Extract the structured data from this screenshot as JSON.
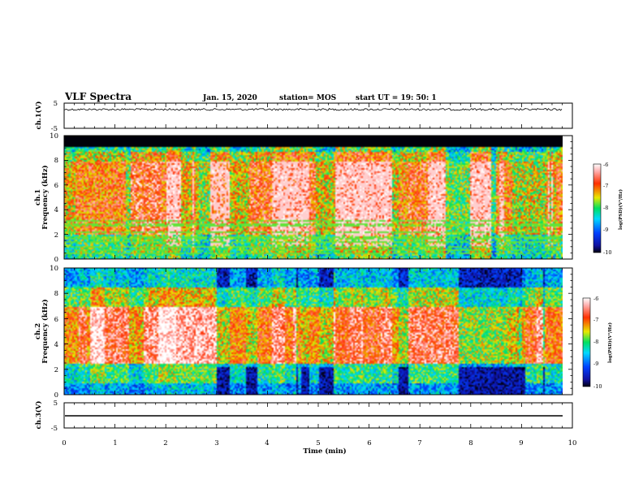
{
  "header": {
    "title": "VLF Spectra",
    "date": "Jan. 15, 2020",
    "station": "station= MOS",
    "start": "start  UT =   19: 50: 1"
  },
  "colorbar": {
    "label": "log(PSD)(V²/Hz)",
    "ticks": [
      "-6",
      "-7",
      "-8",
      "-9",
      "-10"
    ]
  },
  "colors": {
    "black": "#000000",
    "deep_blue": "#1a1aa0",
    "blue": "#0040ff",
    "cyan": "#00d8ff",
    "green": "#00e060",
    "yellow": "#f0e000",
    "red": "#ff2000",
    "white": "#ffffff"
  },
  "chart_data": [
    {
      "type": "line",
      "panel": "ch1-waveform",
      "ylabel": "ch.1(V)",
      "ylim": [
        -5,
        5
      ],
      "yticks": [
        "5",
        "-5"
      ],
      "xlim": [
        0,
        10
      ],
      "approx_level_V": 2.5,
      "description_values": "noisy trace near constant level"
    },
    {
      "type": "heatmap",
      "panel": "ch1-spectrogram",
      "ylabel": "ch.1\nFrequency (kHz)",
      "ylabel_line1": "ch.1",
      "ylabel_line2": "Frequency (kHz)",
      "ylim": [
        0,
        10
      ],
      "yticks": [
        "0",
        "2",
        "4",
        "6",
        "8",
        "10"
      ],
      "xlim": [
        0,
        9.85
      ],
      "colorscale_range": [
        -10,
        -6
      ],
      "upper_cutoff_kHz": 9.2,
      "dominant_band_kHz": [
        1,
        8.5
      ]
    },
    {
      "type": "heatmap",
      "panel": "ch2-spectrogram",
      "ylabel_line1": "ch.2",
      "ylabel_line2": "Frequency (kHz)",
      "ylim": [
        0,
        10
      ],
      "yticks": [
        "0",
        "2",
        "4",
        "6",
        "8",
        "10"
      ],
      "xlim": [
        0,
        9.85
      ],
      "colorscale_range": [
        -10,
        -6
      ],
      "dominant_band_kHz": [
        1,
        9.5
      ]
    },
    {
      "type": "line",
      "panel": "ch3-waveform",
      "ylabel": "ch.3(V)",
      "ylim": [
        -5,
        5
      ],
      "yticks": [
        "5",
        "-5"
      ],
      "xlim": [
        0,
        10
      ],
      "approx_level_V": 0,
      "xlabel": "Time (min)",
      "xticks": [
        "0",
        "1",
        "2",
        "3",
        "4",
        "5",
        "6",
        "7",
        "8",
        "9",
        "10"
      ]
    }
  ]
}
